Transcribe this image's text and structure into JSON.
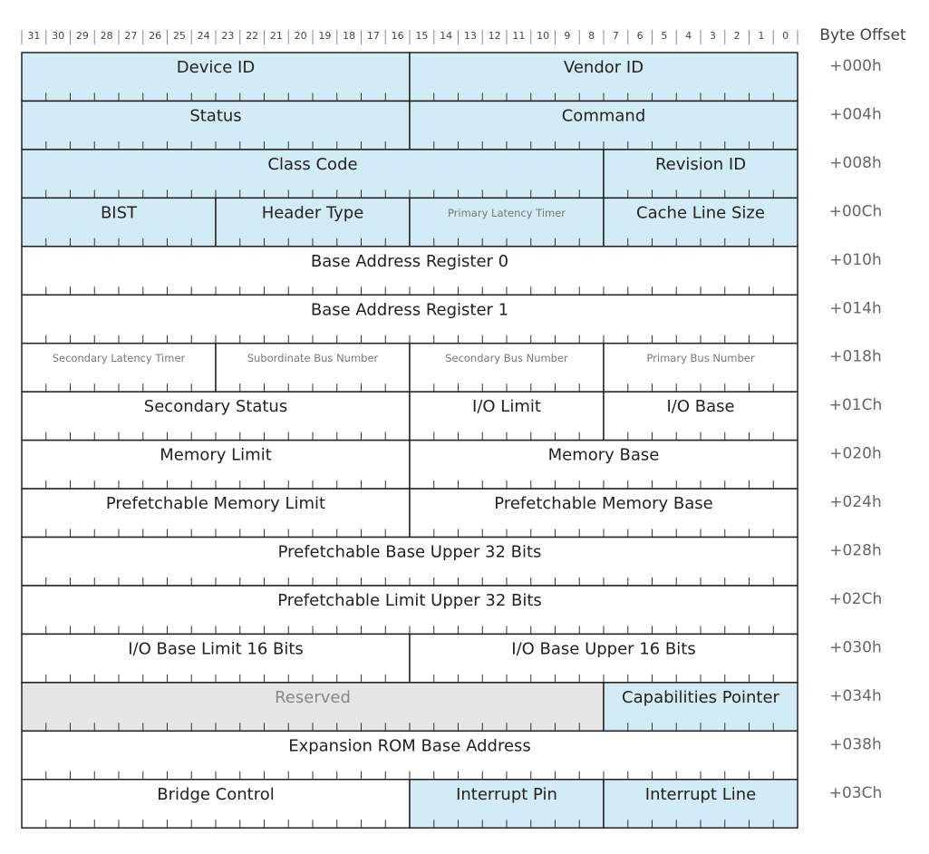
{
  "header": {
    "bits": [
      31,
      30,
      29,
      28,
      27,
      26,
      25,
      24,
      23,
      22,
      21,
      20,
      19,
      18,
      17,
      16,
      15,
      14,
      13,
      12,
      11,
      10,
      9,
      8,
      7,
      6,
      5,
      4,
      3,
      2,
      1,
      0
    ],
    "offset_label": "Byte Offset"
  },
  "rows": [
    {
      "offset": "+000h",
      "fields": [
        "Device ID",
        "Vendor ID"
      ]
    },
    {
      "offset": "+004h",
      "fields": [
        "Status",
        "Command"
      ]
    },
    {
      "offset": "+008h",
      "fields": [
        "Class Code",
        "Revision ID"
      ]
    },
    {
      "offset": "+00Ch",
      "fields": [
        "BIST",
        "Header Type",
        "Primary Latency Timer",
        "Cache Line Size"
      ]
    },
    {
      "offset": "+010h",
      "fields": [
        "Base Address Register 0"
      ]
    },
    {
      "offset": "+014h",
      "fields": [
        "Base Address Register 1"
      ]
    },
    {
      "offset": "+018h",
      "fields": [
        "Secondary Latency Timer",
        "Subordinate Bus Number",
        "Secondary Bus Number",
        "Primary Bus Number"
      ]
    },
    {
      "offset": "+01Ch",
      "fields": [
        "Secondary Status",
        "I/O Limit",
        "I/O Base"
      ]
    },
    {
      "offset": "+020h",
      "fields": [
        "Memory Limit",
        "Memory Base"
      ]
    },
    {
      "offset": "+024h",
      "fields": [
        "Prefetchable Memory Limit",
        "Prefetchable Memory Base"
      ]
    },
    {
      "offset": "+028h",
      "fields": [
        "Prefetchable Base Upper 32 Bits"
      ]
    },
    {
      "offset": "+02Ch",
      "fields": [
        "Prefetchable Limit Upper 32 Bits"
      ]
    },
    {
      "offset": "+030h",
      "fields": [
        "I/O Base Limit 16 Bits",
        "I/O Base Upper 16 Bits"
      ]
    },
    {
      "offset": "+034h",
      "fields": [
        "Reserved",
        "Capabilities Pointer"
      ]
    },
    {
      "offset": "+038h",
      "fields": [
        "Expansion ROM Base Address"
      ]
    },
    {
      "offset": "+03Ch",
      "fields": [
        "Bridge Control",
        "Interrupt Pin",
        "Interrupt Line"
      ]
    }
  ]
}
